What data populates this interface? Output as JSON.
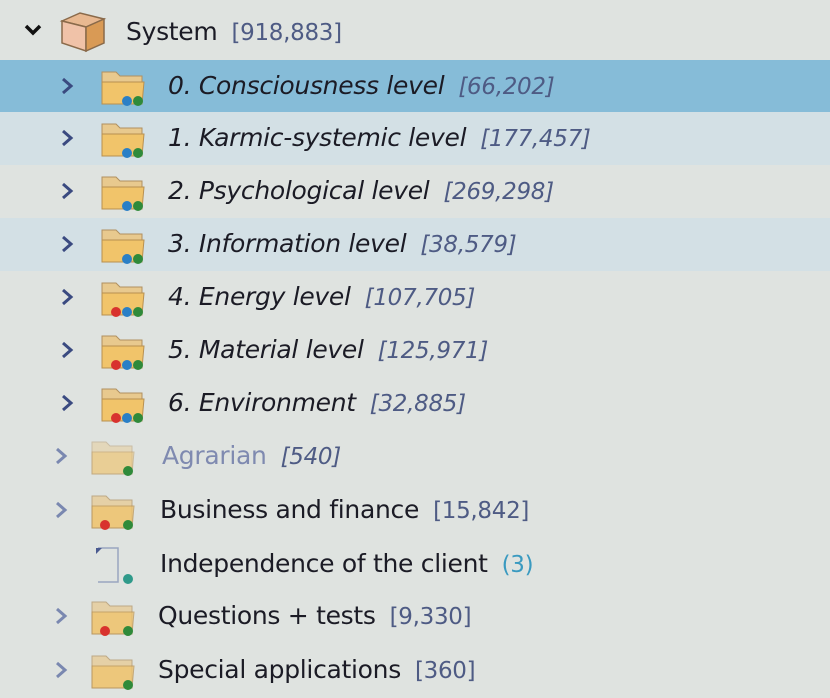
{
  "root": {
    "label": "System",
    "count": "[918,883]",
    "expanded": true,
    "icon": "cube-icon"
  },
  "items": [
    {
      "label": "0. Consciousness level",
      "count": "[66,202]",
      "italic": true,
      "selected": true,
      "dots": [
        "#2a7fc6",
        "#2f8a3a"
      ]
    },
    {
      "label": "1. Karmic-systemic level",
      "count": "[177,457]",
      "italic": true,
      "dots": [
        "#2a7fc6",
        "#2f8a3a"
      ]
    },
    {
      "label": "2. Psychological level",
      "count": "[269,298]",
      "italic": true,
      "dots": [
        "#2a7fc6",
        "#2f8a3a"
      ]
    },
    {
      "label": "3. Information level",
      "count": "[38,579]",
      "italic": true,
      "dots": [
        "#2a7fc6",
        "#2f8a3a"
      ]
    },
    {
      "label": "4. Energy level",
      "count": "[107,705]",
      "italic": true,
      "dots": [
        "#d8322e",
        "#2a7fc6",
        "#2f8a3a"
      ]
    },
    {
      "label": "5. Material level",
      "count": "[125,971]",
      "italic": true,
      "dots": [
        "#d8322e",
        "#2a7fc6",
        "#2f8a3a"
      ]
    },
    {
      "label": "6. Environment",
      "count": "[32,885]",
      "italic": true,
      "dots": [
        "#d8322e",
        "#2a7fc6",
        "#2f8a3a"
      ]
    },
    {
      "label": "Agrarian",
      "count": "[540]",
      "dim": true,
      "countItalic": true,
      "faded": true,
      "dots": [
        "#2f8a3a"
      ]
    },
    {
      "label": "Business and finance",
      "count": "[15,842]",
      "dots": [
        "#d8322e",
        "#2f8a3a"
      ]
    },
    {
      "label": "Independence of the client",
      "count": "(3)",
      "doc": true,
      "tealCount": true,
      "dots": [
        "#2f9a8a"
      ]
    },
    {
      "label": "Questions + tests",
      "count": "[9,330]",
      "dots": [
        "#d8322e",
        "#2f8a3a"
      ]
    },
    {
      "label": "Special applications",
      "count": "[360]",
      "dots": [
        "#2f8a3a"
      ]
    }
  ]
}
